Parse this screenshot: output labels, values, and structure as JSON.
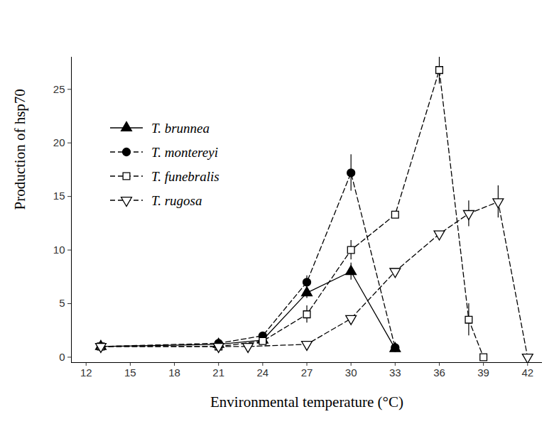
{
  "chart_data": {
    "type": "line",
    "x_label": "Environmental temperature (°C)",
    "y_label": "Production of hsp70",
    "xlim": [
      11,
      43
    ],
    "xticks": [
      12,
      15,
      18,
      21,
      24,
      27,
      30,
      33,
      36,
      39,
      42
    ],
    "ylim": [
      -0.5,
      28
    ],
    "yticks": [
      0,
      5,
      10,
      15,
      20,
      25
    ],
    "grid": false,
    "legend": "upper left",
    "series": [
      {
        "name": "T. brunnea",
        "color": "#000000",
        "marker": "triangle",
        "line_style": "solid",
        "x": [
          13,
          21,
          24,
          27,
          30,
          33
        ],
        "values": [
          1,
          1.2,
          1.6,
          6,
          8,
          0.8
        ],
        "errors": [
          null,
          null,
          null,
          0.5,
          0.8,
          null
        ]
      },
      {
        "name": "T. montereyi",
        "color": "#000000",
        "marker": "circle",
        "line_style": "dashed",
        "x": [
          13,
          21,
          24,
          27,
          30,
          33
        ],
        "values": [
          1,
          1.3,
          2,
          7,
          17.2,
          0.9
        ],
        "errors": [
          null,
          null,
          null,
          0.6,
          1.7,
          null
        ]
      },
      {
        "name": "T. funebralis",
        "color": "#000000",
        "marker": "square-open",
        "line_style": "dashed",
        "x": [
          13,
          21,
          24,
          27,
          30,
          33,
          36,
          38,
          39
        ],
        "values": [
          1,
          1,
          1.5,
          4,
          10,
          13.3,
          26.8,
          3.5,
          0
        ],
        "errors": [
          null,
          null,
          null,
          0.8,
          0.9,
          null,
          1.3,
          1.5,
          null
        ]
      },
      {
        "name": "T. rugosa",
        "color": "#000000",
        "marker": "triangle-down-open",
        "line_style": "dashed",
        "x": [
          13,
          21,
          23,
          27,
          30,
          33,
          36,
          38,
          40,
          42
        ],
        "values": [
          1,
          1,
          1,
          1.2,
          3.6,
          8,
          11.5,
          13.4,
          14.5,
          0
        ],
        "errors": [
          null,
          null,
          null,
          null,
          null,
          null,
          null,
          1.2,
          1.5,
          null
        ]
      }
    ]
  }
}
